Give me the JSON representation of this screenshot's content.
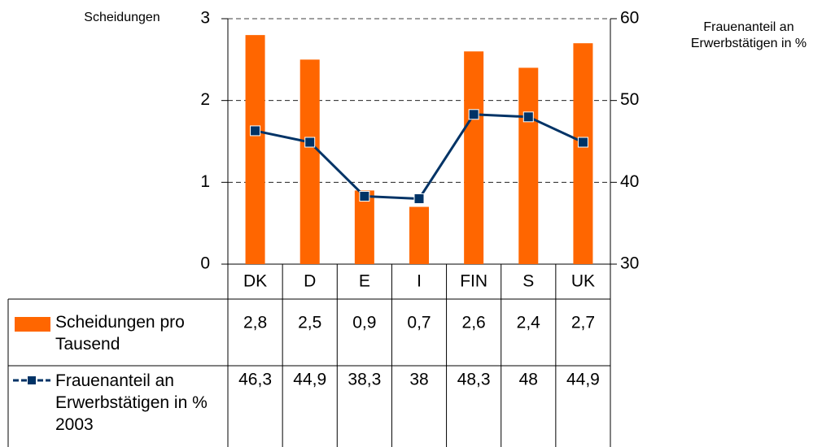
{
  "chart_data": {
    "type": "bar-line",
    "y_label": "Scheidungen",
    "y2_label": "Frauenanteil an Erwerbstätigen in %",
    "categories": [
      "DK",
      "D",
      "E",
      "I",
      "FIN",
      "S",
      "UK"
    ],
    "series": [
      {
        "name": "Scheidungen pro Tausend",
        "type": "bar",
        "color": "#ff6600",
        "axis": "y",
        "values": [
          2.8,
          2.5,
          0.9,
          0.7,
          2.6,
          2.4,
          2.7
        ],
        "value_labels": [
          "2,8",
          "2,5",
          "0,9",
          "0,7",
          "2,6",
          "2,4",
          "2,7"
        ]
      },
      {
        "name": "Frauenanteil an Erwerbstätigen in % 2003",
        "type": "line",
        "color": "#003366",
        "axis": "y2",
        "values": [
          46.3,
          44.9,
          38.3,
          38,
          48.3,
          48,
          44.9
        ],
        "value_labels": [
          "46,3",
          "44,9",
          "38,3",
          "38",
          "48,3",
          "48",
          "44,9"
        ]
      }
    ],
    "ylim": [
      0,
      3
    ],
    "yticks": [
      0,
      1,
      2,
      3
    ],
    "y2lim": [
      30,
      60
    ],
    "y2ticks": [
      30,
      40,
      50,
      60
    ],
    "grid": true
  }
}
